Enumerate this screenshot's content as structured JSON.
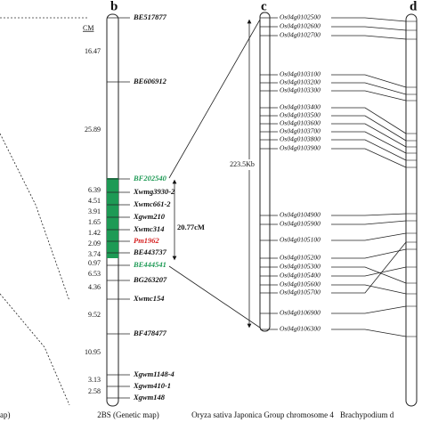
{
  "left_panel": {
    "caption": "ap)"
  },
  "panel_b": {
    "label": "b",
    "unit": "CM",
    "distances": [
      "16.47",
      "25.89",
      "6.39",
      "4.51",
      "3.91",
      "1.65",
      "1.42",
      "2.09",
      "3.74",
      "0.97",
      "6.53",
      "4.36",
      "9.52",
      "10.95",
      "3.13",
      "2.58"
    ],
    "markers": [
      "BE517877",
      "BE606912",
      "BF202540",
      "Xwmg3930-2",
      "Xwmc661-2",
      "Xgwm210",
      "Xwmc314",
      "Pm1962",
      "BE443737",
      "BE444541",
      "BG263207",
      "Xwmc154",
      "BF478477",
      "Xgwm1148-4",
      "Xgwm410-1",
      "Xgwm148"
    ],
    "interval_label": "20.77cM",
    "caption": "2BS (Genetic map)"
  },
  "panel_c": {
    "label": "c",
    "span_label": "223.5Kb",
    "genes": [
      "Os04g0102500",
      "Os04g0102600",
      "Os04g0102700",
      "Os04g0103100",
      "Os04g0103200",
      "Os04g0103300",
      "Os04g0103400",
      "Os04g0103500",
      "Os04g0103600",
      "Os04g0103700",
      "Os04g0103800",
      "Os04g0103900",
      "Os04g0104900",
      "Os04g0105900",
      "Os04g0105100",
      "Os04g0105200",
      "Os04g0105300",
      "Os04g0105400",
      "Os04g0105600",
      "Os04g0105700",
      "Os04g0106900",
      "Os04g0106300"
    ],
    "caption": "Oryza sativa Japonica Group chromosome 4"
  },
  "panel_d": {
    "label": "d",
    "caption": "Brachypodium d"
  }
}
